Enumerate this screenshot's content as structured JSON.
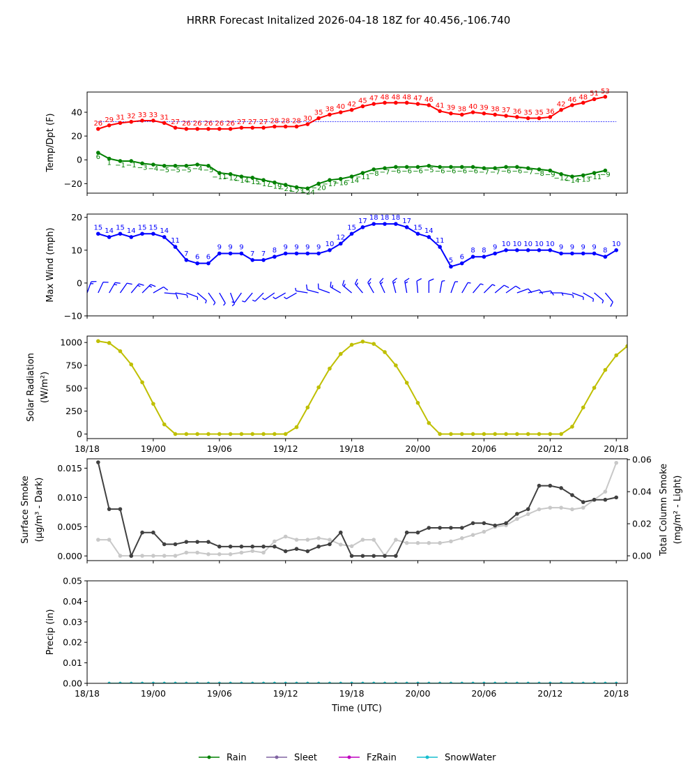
{
  "title": "HRRR Forecast Initalized 2026-04-18 18Z for 40.456,-106.740",
  "xlabel": "Time (UTC)",
  "x_ticks": [
    {
      "label": "18/18",
      "hour": 0
    },
    {
      "label": "19/00",
      "hour": 6
    },
    {
      "label": "19/06",
      "hour": 12
    },
    {
      "label": "19/12",
      "hour": 18
    },
    {
      "label": "19/18",
      "hour": 24
    },
    {
      "label": "20/00",
      "hour": 30
    },
    {
      "label": "20/06",
      "hour": 36
    },
    {
      "label": "20/12",
      "hour": 42
    },
    {
      "label": "20/18",
      "hour": 48
    }
  ],
  "colors": {
    "temp": "#ff0000",
    "dewpoint": "#008000",
    "freezing": "#0000ff",
    "wind": "#0000ff",
    "solar": "#bfbf00",
    "smoke_surface": "#404040",
    "smoke_column": "#c8c8c8",
    "rain": "#008000",
    "sleet": "#8064a2",
    "fzrain": "#bf00bf",
    "snowwater": "#17becf"
  },
  "chart_data": [
    {
      "type": "line",
      "ylabel": "Temp/Dpt (F)",
      "ylim": [
        -28,
        57
      ],
      "yticks": [
        -20,
        0,
        20,
        40
      ],
      "x_hours_start": 1,
      "freezing_line": 32,
      "series": [
        {
          "name": "Temperature",
          "values": [
            26,
            29,
            31,
            32,
            33,
            33,
            31,
            27,
            26,
            26,
            26,
            26,
            26,
            27,
            27,
            27,
            28,
            28,
            28,
            30,
            35,
            38,
            40,
            42,
            45,
            47,
            48,
            48,
            48,
            47,
            46,
            41,
            39,
            38,
            40,
            39,
            38,
            37,
            36,
            35,
            35,
            36,
            42,
            46,
            48,
            51,
            53
          ]
        },
        {
          "name": "Dewpoint",
          "values": [
            6,
            1,
            -1,
            -1,
            -3,
            -4,
            -5,
            -5,
            -5,
            -4,
            -5,
            -11,
            -12,
            -14,
            -15,
            -17,
            -19,
            -21,
            -23,
            -24,
            -20,
            -17,
            -16,
            -14,
            -11,
            -8,
            -7,
            -6,
            -6,
            -6,
            -5,
            -6,
            -6,
            -6,
            -6,
            -7,
            -7,
            -6,
            -6,
            -7,
            -8,
            -9,
            -12,
            -14,
            -13,
            -11,
            -9
          ]
        }
      ]
    },
    {
      "type": "line",
      "ylabel": "Max Wind (mph)",
      "ylim": [
        -10,
        21
      ],
      "yticks": [
        -10,
        0,
        10,
        20
      ],
      "x_hours_start": 1,
      "series": [
        {
          "name": "Max Wind",
          "values": [
            15,
            14,
            15,
            14,
            15,
            15,
            14,
            11,
            7,
            6,
            6,
            9,
            9,
            9,
            7,
            7,
            8,
            9,
            9,
            9,
            9,
            10,
            12,
            15,
            17,
            18,
            18,
            18,
            17,
            15,
            14,
            11,
            5,
            6,
            8,
            8,
            9,
            10,
            10,
            10,
            10,
            10,
            9,
            9,
            9,
            9,
            8,
            10
          ]
        }
      ],
      "barb_y": -3,
      "barbs_direction_deg": [
        20,
        25,
        30,
        35,
        40,
        45,
        60,
        95,
        100,
        110,
        130,
        145,
        150,
        160,
        215,
        220,
        225,
        235,
        240,
        240,
        280,
        285,
        290,
        300,
        310,
        320,
        330,
        335,
        345,
        350,
        355,
        0,
        10,
        20,
        30,
        40,
        45,
        50,
        55,
        70,
        75,
        80,
        90,
        100,
        110,
        120,
        130,
        140
      ]
    },
    {
      "type": "line",
      "ylabel": "Solar Radiation (W/m²)",
      "ylim": [
        -50,
        1070
      ],
      "yticks": [
        0,
        250,
        500,
        750,
        1000
      ],
      "x_hours_start": 1,
      "series": [
        {
          "name": "Solar Radiation",
          "values": [
            1015,
            995,
            905,
            760,
            565,
            330,
            105,
            0,
            0,
            0,
            0,
            0,
            0,
            0,
            0,
            0,
            0,
            0,
            75,
            290,
            510,
            715,
            875,
            975,
            1010,
            985,
            895,
            750,
            560,
            340,
            120,
            0,
            0,
            0,
            0,
            0,
            0,
            0,
            0,
            0,
            0,
            0,
            0,
            80,
            290,
            505,
            700,
            860,
            960
          ]
        }
      ]
    },
    {
      "type": "line",
      "ylabel": "Surface Smoke (µg/m³ - Dark)",
      "ylabel_right": "Total Column Smoke (mg/m² - Light)",
      "ylim": [
        -0.0008,
        0.0166
      ],
      "yticks": [
        0.0,
        0.005,
        0.01,
        0.015
      ],
      "ylim_right": [
        -0.003,
        0.0605
      ],
      "yticks_right": [
        0.0,
        0.02,
        0.04,
        0.06
      ],
      "x_hours_start": 1,
      "series": [
        {
          "name": "Surface Smoke",
          "axis": "left",
          "values": [
            0.016,
            0.008,
            0.008,
            0.0,
            0.004,
            0.004,
            0.002,
            0.002,
            0.0024,
            0.0024,
            0.0024,
            0.0016,
            0.0016,
            0.0016,
            0.0016,
            0.0016,
            0.0016,
            0.0008,
            0.0012,
            0.0008,
            0.0016,
            0.002,
            0.004,
            0.0,
            0.0,
            0.0,
            0.0,
            0.0,
            0.004,
            0.004,
            0.0048,
            0.0048,
            0.0048,
            0.0048,
            0.0056,
            0.0056,
            0.0052,
            0.0056,
            0.0072,
            0.008,
            0.012,
            0.012,
            0.0116,
            0.0104,
            0.0092,
            0.0096,
            0.0096,
            0.01
          ]
        },
        {
          "name": "Total Column Smoke",
          "axis": "right",
          "values": [
            0.01,
            0.01,
            0.0,
            0.0,
            0.0,
            0.0,
            0.0,
            0.0,
            0.002,
            0.002,
            0.001,
            0.001,
            0.001,
            0.002,
            0.003,
            0.002,
            0.009,
            0.012,
            0.01,
            0.01,
            0.011,
            0.01,
            0.007,
            0.006,
            0.01,
            0.01,
            0.0,
            0.01,
            0.008,
            0.008,
            0.008,
            0.008,
            0.009,
            0.011,
            0.013,
            0.015,
            0.018,
            0.019,
            0.023,
            0.026,
            0.029,
            0.03,
            0.03,
            0.029,
            0.03,
            0.035,
            0.04,
            0.058
          ]
        }
      ]
    },
    {
      "type": "line",
      "ylabel": "Precip (in)",
      "ylim": [
        0.0,
        0.05
      ],
      "yticks": [
        0.0,
        0.01,
        0.02,
        0.03,
        0.04,
        0.05
      ],
      "x_hours_start": 2,
      "series": [
        {
          "name": "Rain",
          "values": [
            0,
            0,
            0,
            0,
            0,
            0,
            0,
            0,
            0,
            0,
            0,
            0,
            0,
            0,
            0,
            0,
            0,
            0,
            0,
            0,
            0,
            0,
            0,
            0,
            0,
            0,
            0,
            0,
            0,
            0,
            0,
            0,
            0,
            0,
            0,
            0,
            0,
            0,
            0,
            0,
            0,
            0,
            0,
            0,
            0,
            0,
            0
          ]
        },
        {
          "name": "SnowWater",
          "values": [
            0,
            0,
            0,
            0,
            0,
            0,
            0,
            0,
            0,
            0,
            0,
            0,
            0,
            0,
            0,
            0,
            0,
            0,
            0,
            0,
            0,
            0,
            0,
            0,
            0,
            0,
            0,
            0,
            0,
            0,
            0,
            0,
            0,
            0,
            0,
            0,
            0,
            0,
            0,
            0,
            0,
            0,
            0,
            0,
            0,
            0,
            0
          ]
        }
      ]
    }
  ],
  "legend": [
    "Rain",
    "Sleet",
    "FzRain",
    "SnowWater"
  ]
}
